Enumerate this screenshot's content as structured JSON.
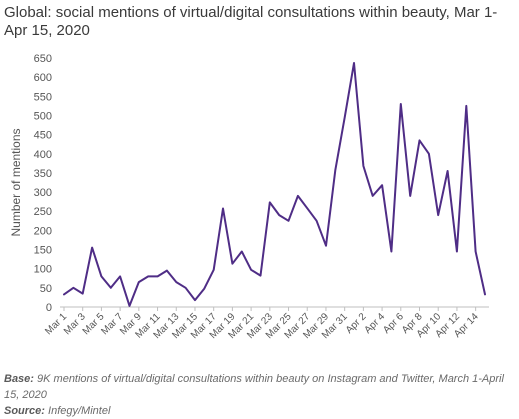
{
  "chart_data": {
    "type": "line",
    "title": "Global: social mentions of virtual/digital consultations within beauty, Mar 1-Apr 15, 2020",
    "xlabel": "",
    "ylabel": "Number of mentions",
    "ylim": [
      0,
      650
    ],
    "yticks": [
      0,
      50,
      100,
      150,
      200,
      250,
      300,
      350,
      400,
      450,
      500,
      550,
      600,
      650
    ],
    "grid": false,
    "legend": "none",
    "x": [
      "Mar 1",
      "Mar 2",
      "Mar 3",
      "Mar 4",
      "Mar 5",
      "Mar 6",
      "Mar 7",
      "Mar 8",
      "Mar 9",
      "Mar 10",
      "Mar 11",
      "Mar 12",
      "Mar 13",
      "Mar 14",
      "Mar 15",
      "Mar 16",
      "Mar 17",
      "Mar 18",
      "Mar 19",
      "Mar 20",
      "Mar 21",
      "Mar 22",
      "Mar 23",
      "Mar 24",
      "Mar 25",
      "Mar 26",
      "Mar 27",
      "Mar 28",
      "Mar 29",
      "Mar 30",
      "Mar 31",
      "Apr 1",
      "Apr 2",
      "Apr 3",
      "Apr 4",
      "Apr 5",
      "Apr 6",
      "Apr 7",
      "Apr 8",
      "Apr 9",
      "Apr 10",
      "Apr 11",
      "Apr 12",
      "Apr 13",
      "Apr 14",
      "Apr 15"
    ],
    "x_tick_labels": [
      "Mar 1",
      "Mar 3",
      "Mar 5",
      "Mar 7",
      "Mar 9",
      "Mar 11",
      "Mar 13",
      "Mar 15",
      "Mar 17",
      "Mar 19",
      "Mar 21",
      "Mar 23",
      "Mar 25",
      "Mar 27",
      "Mar 29",
      "Mar 31",
      "Apr 2",
      "Apr 4",
      "Apr 6",
      "Apr 8",
      "Apr 10",
      "Apr 12",
      "Apr 14"
    ],
    "series": [
      {
        "name": "",
        "color": "#4f2d86",
        "values": [
          33,
          50,
          35,
          155,
          80,
          50,
          80,
          3,
          65,
          80,
          80,
          95,
          65,
          50,
          18,
          48,
          97,
          257,
          113,
          145,
          97,
          82,
          273,
          240,
          225,
          290,
          258,
          225,
          160,
          357,
          495,
          637,
          368,
          290,
          318,
          145,
          530,
          290,
          435,
          400,
          240,
          355,
          145,
          525,
          145,
          33
        ]
      }
    ]
  },
  "footer": {
    "base_label": "Base:",
    "base_text": " 9K mentions of virtual/digital consultations within beauty on Instagram and Twitter, March 1-April 15, 2020",
    "source_label": "Source:",
    "source_text": " Infegy/Mintel"
  },
  "colors": {
    "axis": "#bfbfbf",
    "text": "#555555",
    "line": "#4f2d86"
  }
}
